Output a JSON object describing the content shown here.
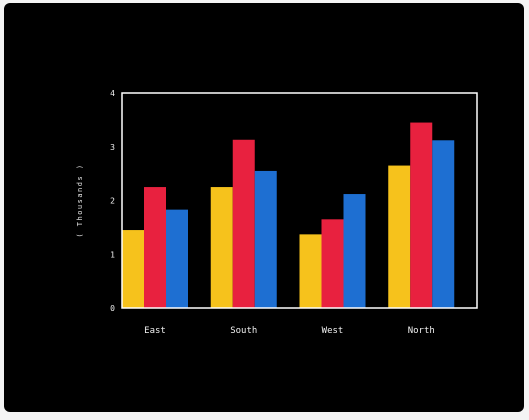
{
  "chart_data": {
    "type": "bar",
    "title": "",
    "xlabel": "",
    "ylabel": "( Thousands )",
    "categories": [
      "East",
      "South",
      "West",
      "North"
    ],
    "series": [
      {
        "color": "#f6c21c",
        "values": [
          1.45,
          2.25,
          1.37,
          2.65
        ]
      },
      {
        "color": "#e8213f",
        "values": [
          2.25,
          3.13,
          1.65,
          3.45
        ]
      },
      {
        "color": "#1e6fd2",
        "values": [
          1.83,
          2.55,
          2.12,
          3.12
        ]
      }
    ],
    "ylim": [
      0,
      4
    ],
    "yticks": [
      "0",
      "1",
      "2",
      "3",
      "4"
    ],
    "grid": false,
    "legend": "none",
    "background": "#000000",
    "axis_color": "#ffffff"
  }
}
